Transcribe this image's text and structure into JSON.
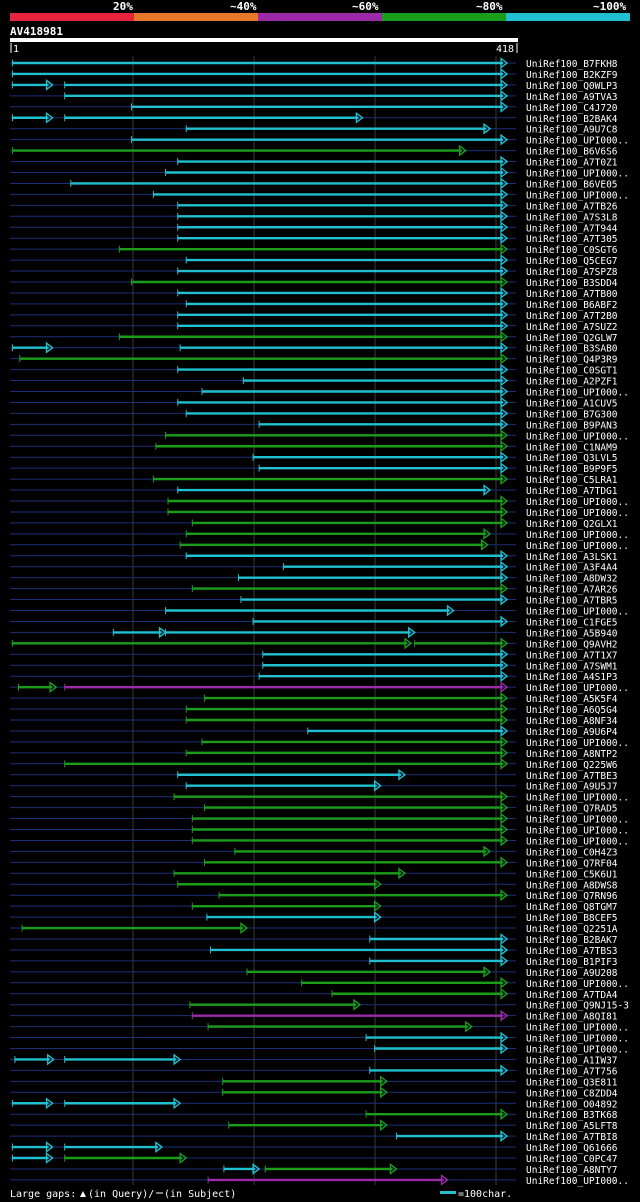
{
  "chart_data": {
    "type": "alignment",
    "query": {
      "name": "AV418981",
      "start": "1",
      "end": "418",
      "length": 418
    },
    "identity_legend": [
      "20%",
      "~40%",
      "~60%",
      "~80%",
      "~100%"
    ],
    "identity_colors": [
      "#e8233c",
      "#e8782a",
      "#9c2aa8",
      "#1a9e1a",
      "#20c0d0"
    ],
    "color_keys": {
      "c": "#20c0d0",
      "g": "#1a9e1a",
      "m": "#9c2aa8"
    },
    "gap_color": "#1a2f78",
    "footer": {
      "large_gaps_label": "Large gaps:",
      "query_gap_label": "(in Query)/",
      "subject_gap_label": "(in Subject)",
      "scale_label": "=100char."
    },
    "hits": [
      {
        "name": "UniRef100_B7FKH8",
        "segs": [
          [
            2,
            409,
            "c"
          ]
        ]
      },
      {
        "name": "UniRef100_B2KZF9",
        "segs": [
          [
            2,
            409,
            "c"
          ]
        ]
      },
      {
        "name": "UniRef100_Q0WLP3",
        "segs": [
          [
            2,
            35,
            "c"
          ],
          [
            45,
            409,
            "c"
          ]
        ]
      },
      {
        "name": "UniRef100_A9TVA3",
        "segs": [
          [
            45,
            409,
            "c"
          ]
        ]
      },
      {
        "name": "UniRef100_C4J720",
        "segs": [
          [
            100,
            409,
            "c"
          ]
        ]
      },
      {
        "name": "UniRef100_B2BAK4",
        "segs": [
          [
            2,
            35,
            "c"
          ],
          [
            45,
            290,
            "c"
          ]
        ]
      },
      {
        "name": "UniRef100_A9U7C8",
        "segs": [
          [
            145,
            395,
            "c"
          ]
        ]
      },
      {
        "name": "UniRef100_UPI000..",
        "segs": [
          [
            100,
            409,
            "c"
          ]
        ]
      },
      {
        "name": "UniRef100_B6V6S6",
        "segs": [
          [
            2,
            375,
            "g"
          ]
        ]
      },
      {
        "name": "UniRef100_A7T0Z1",
        "segs": [
          [
            138,
            409,
            "c"
          ]
        ]
      },
      {
        "name": "UniRef100_UPI000..",
        "segs": [
          [
            128,
            409,
            "c"
          ]
        ]
      },
      {
        "name": "UniRef100_B6VE05",
        "segs": [
          [
            50,
            409,
            "c"
          ]
        ]
      },
      {
        "name": "UniRef100_UPI000..",
        "segs": [
          [
            118,
            409,
            "c"
          ]
        ]
      },
      {
        "name": "UniRef100_A7TB26",
        "segs": [
          [
            138,
            409,
            "c"
          ]
        ]
      },
      {
        "name": "UniRef100_A7S3L8",
        "segs": [
          [
            138,
            409,
            "c"
          ]
        ]
      },
      {
        "name": "UniRef100_A7T944",
        "segs": [
          [
            138,
            409,
            "c"
          ]
        ]
      },
      {
        "name": "UniRef100_A7T305",
        "segs": [
          [
            138,
            409,
            "c"
          ]
        ]
      },
      {
        "name": "UniRef100_C0SGT6",
        "segs": [
          [
            90,
            409,
            "g"
          ]
        ]
      },
      {
        "name": "UniRef100_Q5CEG7",
        "segs": [
          [
            145,
            409,
            "c"
          ]
        ]
      },
      {
        "name": "UniRef100_A7SPZ8",
        "segs": [
          [
            138,
            409,
            "c"
          ]
        ]
      },
      {
        "name": "UniRef100_B3SDD4",
        "segs": [
          [
            100,
            409,
            "g"
          ]
        ]
      },
      {
        "name": "UniRef100_A7TB00",
        "segs": [
          [
            138,
            409,
            "c"
          ]
        ]
      },
      {
        "name": "UniRef100_B6ABF2",
        "segs": [
          [
            145,
            409,
            "c"
          ]
        ]
      },
      {
        "name": "UniRef100_A7T2B0",
        "segs": [
          [
            138,
            409,
            "c"
          ]
        ]
      },
      {
        "name": "UniRef100_A7SUZ2",
        "segs": [
          [
            138,
            409,
            "c"
          ]
        ]
      },
      {
        "name": "UniRef100_Q2GLW7",
        "segs": [
          [
            90,
            409,
            "g"
          ]
        ]
      },
      {
        "name": "UniRef100_B3SAB0",
        "segs": [
          [
            2,
            35,
            "c"
          ],
          [
            140,
            409,
            "c"
          ]
        ]
      },
      {
        "name": "UniRef100_Q4P3R9",
        "segs": [
          [
            8,
            409,
            "g"
          ]
        ]
      },
      {
        "name": "UniRef100_C0SGT1",
        "segs": [
          [
            138,
            409,
            "c"
          ]
        ]
      },
      {
        "name": "UniRef100_A2PZF1",
        "segs": [
          [
            192,
            409,
            "c"
          ]
        ]
      },
      {
        "name": "UniRef100_UPI000..",
        "segs": [
          [
            158,
            409,
            "c"
          ]
        ]
      },
      {
        "name": "UniRef100_A1CUV5",
        "segs": [
          [
            138,
            409,
            "c"
          ]
        ]
      },
      {
        "name": "UniRef100_B7G300",
        "segs": [
          [
            145,
            409,
            "c"
          ]
        ]
      },
      {
        "name": "UniRef100_B9PAN3",
        "segs": [
          [
            205,
            409,
            "c"
          ]
        ]
      },
      {
        "name": "UniRef100_UPI000..",
        "segs": [
          [
            128,
            409,
            "g"
          ]
        ]
      },
      {
        "name": "UniRef100_C1NAM9",
        "segs": [
          [
            120,
            409,
            "g"
          ]
        ]
      },
      {
        "name": "UniRef100_Q3LVL5",
        "segs": [
          [
            200,
            409,
            "c"
          ]
        ]
      },
      {
        "name": "UniRef100_B9P9F5",
        "segs": [
          [
            205,
            409,
            "c"
          ]
        ]
      },
      {
        "name": "UniRef100_C5LRA1",
        "segs": [
          [
            118,
            409,
            "g"
          ]
        ]
      },
      {
        "name": "UniRef100_A7TDG1",
        "segs": [
          [
            138,
            395,
            "c"
          ]
        ]
      },
      {
        "name": "UniRef100_UPI000..",
        "segs": [
          [
            130,
            409,
            "g"
          ]
        ]
      },
      {
        "name": "UniRef100_UPI000..",
        "segs": [
          [
            130,
            409,
            "g"
          ]
        ]
      },
      {
        "name": "UniRef100_Q2GLX1",
        "segs": [
          [
            150,
            409,
            "g"
          ]
        ]
      },
      {
        "name": "UniRef100_UPI000..",
        "segs": [
          [
            145,
            395,
            "g"
          ]
        ]
      },
      {
        "name": "UniRef100_UPI000..",
        "segs": [
          [
            140,
            393,
            "g"
          ]
        ]
      },
      {
        "name": "UniRef100_A3LSK1",
        "segs": [
          [
            145,
            409,
            "c"
          ]
        ]
      },
      {
        "name": "UniRef100_A3F4A4",
        "segs": [
          [
            225,
            409,
            "c"
          ]
        ]
      },
      {
        "name": "UniRef100_A8DW32",
        "segs": [
          [
            188,
            409,
            "c"
          ]
        ]
      },
      {
        "name": "UniRef100_A7AR26",
        "segs": [
          [
            150,
            409,
            "g"
          ]
        ]
      },
      {
        "name": "UniRef100_A7TBR5",
        "segs": [
          [
            190,
            409,
            "c"
          ]
        ]
      },
      {
        "name": "UniRef100_UPI000..",
        "segs": [
          [
            128,
            365,
            "c"
          ]
        ]
      },
      {
        "name": "UniRef100_C1FGE5",
        "segs": [
          [
            200,
            409,
            "c"
          ]
        ]
      },
      {
        "name": "UniRef100_A5B940",
        "segs": [
          [
            85,
            128,
            "c"
          ],
          [
            128,
            333,
            "c"
          ]
        ]
      },
      {
        "name": "UniRef100_Q9AVH2",
        "segs": [
          [
            2,
            330,
            "g"
          ],
          [
            333,
            409,
            "g"
          ]
        ]
      },
      {
        "name": "UniRef100_A7T1X7",
        "segs": [
          [
            208,
            409,
            "c"
          ]
        ]
      },
      {
        "name": "UniRef100_A7SWM1",
        "segs": [
          [
            208,
            409,
            "c"
          ]
        ]
      },
      {
        "name": "UniRef100_A4S1P3",
        "segs": [
          [
            205,
            409,
            "c"
          ]
        ]
      },
      {
        "name": "UniRef100_UPI000..",
        "segs": [
          [
            7,
            38,
            "g"
          ],
          [
            45,
            409,
            "m"
          ]
        ]
      },
      {
        "name": "UniRef100_A5K5F4",
        "segs": [
          [
            160,
            409,
            "g"
          ]
        ]
      },
      {
        "name": "UniRef100_A6Q5G4",
        "segs": [
          [
            145,
            409,
            "g"
          ]
        ]
      },
      {
        "name": "UniRef100_A8NF34",
        "segs": [
          [
            145,
            409,
            "g"
          ]
        ]
      },
      {
        "name": "UniRef100_A9U6P4",
        "segs": [
          [
            245,
            409,
            "c"
          ]
        ]
      },
      {
        "name": "UniRef100_UPI000..",
        "segs": [
          [
            158,
            409,
            "g"
          ]
        ]
      },
      {
        "name": "UniRef100_A8NTP2",
        "segs": [
          [
            145,
            409,
            "g"
          ]
        ]
      },
      {
        "name": "UniRef100_Q225W6",
        "segs": [
          [
            45,
            409,
            "g"
          ]
        ]
      },
      {
        "name": "UniRef100_A7TBE3",
        "segs": [
          [
            138,
            325,
            "c"
          ]
        ]
      },
      {
        "name": "UniRef100_A9U5J7",
        "segs": [
          [
            145,
            305,
            "c"
          ]
        ]
      },
      {
        "name": "UniRef100_UPI000..",
        "segs": [
          [
            135,
            409,
            "g"
          ]
        ]
      },
      {
        "name": "UniRef100_Q7RAD5",
        "segs": [
          [
            160,
            409,
            "g"
          ]
        ]
      },
      {
        "name": "UniRef100_UPI000..",
        "segs": [
          [
            150,
            409,
            "g"
          ]
        ]
      },
      {
        "name": "UniRef100_UPI000..",
        "segs": [
          [
            150,
            409,
            "g"
          ]
        ]
      },
      {
        "name": "UniRef100_UPI000..",
        "segs": [
          [
            150,
            409,
            "g"
          ]
        ]
      },
      {
        "name": "UniRef100_C0H4Z3",
        "segs": [
          [
            185,
            395,
            "g"
          ]
        ]
      },
      {
        "name": "UniRef100_Q7RF04",
        "segs": [
          [
            160,
            409,
            "g"
          ]
        ]
      },
      {
        "name": "UniRef100_C5K6U1",
        "segs": [
          [
            135,
            325,
            "g"
          ]
        ]
      },
      {
        "name": "UniRef100_A8DWS8",
        "segs": [
          [
            138,
            305,
            "g"
          ]
        ]
      },
      {
        "name": "UniRef100_Q7RN96",
        "segs": [
          [
            172,
            409,
            "g"
          ]
        ]
      },
      {
        "name": "UniRef100_Q8TGM7",
        "segs": [
          [
            150,
            305,
            "g"
          ]
        ]
      },
      {
        "name": "UniRef100_B8CEF5",
        "segs": [
          [
            162,
            305,
            "c"
          ]
        ]
      },
      {
        "name": "UniRef100_Q2251A",
        "segs": [
          [
            10,
            195,
            "g"
          ]
        ]
      },
      {
        "name": "UniRef100_B2BAK7",
        "segs": [
          [
            296,
            409,
            "c"
          ]
        ]
      },
      {
        "name": "UniRef100_A7TBS3",
        "segs": [
          [
            165,
            409,
            "c"
          ]
        ]
      },
      {
        "name": "UniRef100_B1PIF3",
        "segs": [
          [
            296,
            409,
            "c"
          ]
        ]
      },
      {
        "name": "UniRef100_A9U208",
        "segs": [
          [
            195,
            395,
            "g"
          ]
        ]
      },
      {
        "name": "UniRef100_UPI000..",
        "segs": [
          [
            240,
            409,
            "g"
          ]
        ]
      },
      {
        "name": "UniRef100_A7TDA4",
        "segs": [
          [
            265,
            409,
            "g"
          ]
        ]
      },
      {
        "name": "UniRef100_Q9NJ15-3",
        "segs": [
          [
            148,
            288,
            "g"
          ]
        ]
      },
      {
        "name": "UniRef100_A8QI81",
        "segs": [
          [
            150,
            409,
            "m"
          ]
        ]
      },
      {
        "name": "UniRef100_UPI000..",
        "segs": [
          [
            163,
            380,
            "g"
          ]
        ]
      },
      {
        "name": "UniRef100_UPI000..",
        "segs": [
          [
            293,
            409,
            "c"
          ]
        ]
      },
      {
        "name": "UniRef100_UPI000..",
        "segs": [
          [
            300,
            409,
            "c"
          ]
        ]
      },
      {
        "name": "UniRef100_A1IW37",
        "segs": [
          [
            4,
            36,
            "c"
          ],
          [
            45,
            140,
            "c"
          ]
        ]
      },
      {
        "name": "UniRef100_A7T756",
        "segs": [
          [
            296,
            409,
            "c"
          ]
        ]
      },
      {
        "name": "UniRef100_Q3E811",
        "segs": [
          [
            175,
            310,
            "g"
          ]
        ]
      },
      {
        "name": "UniRef100_C8ZDD4",
        "segs": [
          [
            175,
            310,
            "g"
          ]
        ]
      },
      {
        "name": "UniRef100_O04892",
        "segs": [
          [
            2,
            35,
            "c"
          ],
          [
            45,
            140,
            "c"
          ]
        ]
      },
      {
        "name": "UniRef100_B3TK68",
        "segs": [
          [
            293,
            409,
            "g"
          ]
        ]
      },
      {
        "name": "UniRef100_A5LFT8",
        "segs": [
          [
            180,
            310,
            "g"
          ]
        ]
      },
      {
        "name": "UniRef100_A7TBI8",
        "segs": [
          [
            318,
            409,
            "c"
          ]
        ]
      },
      {
        "name": "UniRef100_Q61666",
        "segs": [
          [
            2,
            35,
            "c"
          ],
          [
            45,
            125,
            "c"
          ]
        ]
      },
      {
        "name": "UniRef100_C0PC47",
        "segs": [
          [
            2,
            35,
            "c"
          ],
          [
            45,
            145,
            "g"
          ]
        ]
      },
      {
        "name": "UniRef100_A8NTY7",
        "segs": [
          [
            176,
            205,
            "c"
          ],
          [
            210,
            318,
            "g"
          ]
        ]
      },
      {
        "name": "UniRef100_UPI000..",
        "segs": [
          [
            163,
            360,
            "m"
          ]
        ]
      }
    ]
  }
}
